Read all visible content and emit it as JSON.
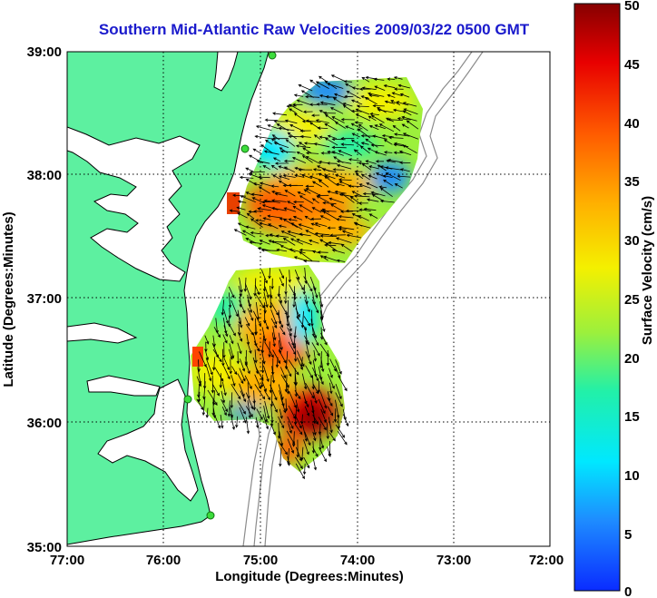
{
  "title": "Southern Mid-Atlantic Raw Velocities 2009/03/22 0500 GMT",
  "xlabel": "Longitude (Degrees:Minutes)",
  "ylabel": "Latitude (Degrees:Minutes)",
  "x_ticks": [
    "77:00",
    "76:00",
    "75:00",
    "74:00",
    "73:00",
    "72:00"
  ],
  "y_ticks": [
    "39:00",
    "38:00",
    "37:00",
    "36:00",
    "35:00"
  ],
  "colorbar": {
    "label": "Surface Velocity (cm/s)",
    "ticks": [
      "50",
      "45",
      "40",
      "35",
      "30",
      "25",
      "20",
      "15",
      "10",
      "5",
      "0"
    ],
    "range": [
      0,
      50
    ]
  },
  "colors": {
    "land": "#5df0a0",
    "water": "#ffffff",
    "title": "#1a1acc",
    "station": "#3cdc3c",
    "bathymetry": "#8c8c8c"
  },
  "lon_range": [
    -77,
    -72
  ],
  "lat_range": [
    35,
    39
  ]
}
